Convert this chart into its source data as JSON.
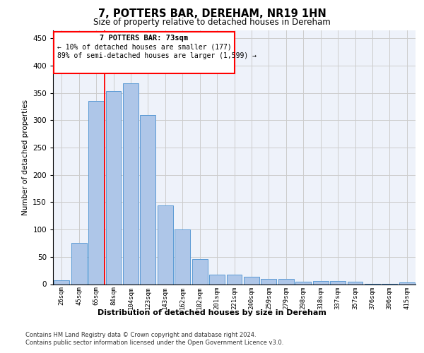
{
  "title1": "7, POTTERS BAR, DEREHAM, NR19 1HN",
  "title2": "Size of property relative to detached houses in Dereham",
  "xlabel": "Distribution of detached houses by size in Dereham",
  "ylabel": "Number of detached properties",
  "categories": [
    "26sqm",
    "45sqm",
    "65sqm",
    "84sqm",
    "104sqm",
    "123sqm",
    "143sqm",
    "162sqm",
    "182sqm",
    "201sqm",
    "221sqm",
    "240sqm",
    "259sqm",
    "279sqm",
    "298sqm",
    "318sqm",
    "337sqm",
    "357sqm",
    "376sqm",
    "396sqm",
    "415sqm"
  ],
  "values": [
    7,
    75,
    335,
    353,
    367,
    310,
    144,
    100,
    46,
    18,
    18,
    13,
    10,
    10,
    4,
    6,
    6,
    4,
    1,
    1,
    3
  ],
  "bar_color": "#aec6e8",
  "bar_edge_color": "#5b9bd5",
  "grid_color": "#cccccc",
  "annotation_box_text1": "7 POTTERS BAR: 73sqm",
  "annotation_box_text2": "← 10% of detached houses are smaller (177)",
  "annotation_box_text3": "89% of semi-detached houses are larger (1,599) →",
  "redline_x": 1.5,
  "footnote1": "Contains HM Land Registry data © Crown copyright and database right 2024.",
  "footnote2": "Contains public sector information licensed under the Open Government Licence v3.0.",
  "ylim": [
    0,
    465
  ],
  "background_color": "#eef2fa"
}
